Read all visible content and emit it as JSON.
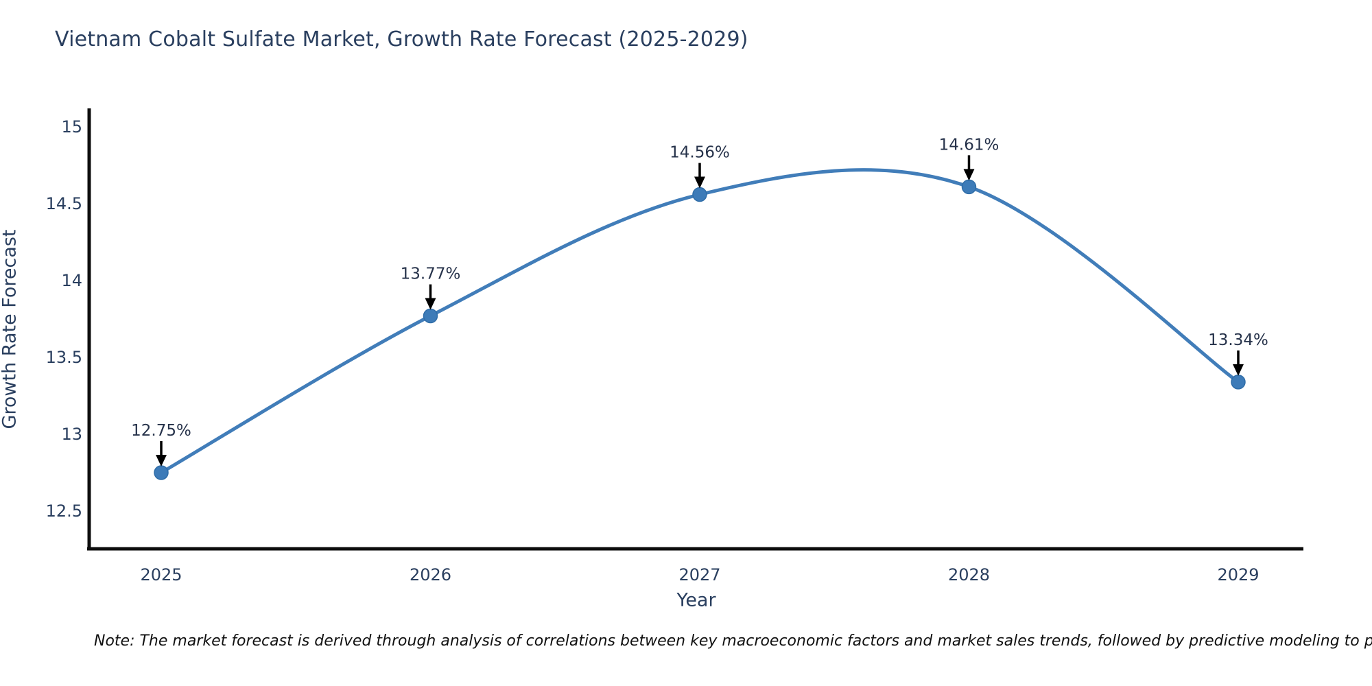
{
  "title": "Vietnam Cobalt Sulfate Market, Growth Rate Forecast (2025-2029)",
  "note": "Note: The market forecast is derived through analysis of correlations between key macroeconomic factors and market sales trends, followed by predictive modeling to project future sal",
  "chart_data": {
    "type": "line",
    "title": "Vietnam Cobalt Sulfate Market, Growth Rate Forecast (2025-2029)",
    "xlabel": "Year",
    "ylabel": "Growth Rate Forecast",
    "categories": [
      "2025",
      "2026",
      "2027",
      "2028",
      "2029"
    ],
    "series": [
      {
        "name": "Growth Rate Forecast",
        "values": [
          12.75,
          13.77,
          14.56,
          14.61,
          13.34
        ]
      }
    ],
    "point_labels": [
      "12.75%",
      "13.77%",
      "14.56%",
      "14.61%",
      "13.34%"
    ],
    "yticks": [
      "12.5",
      "13",
      "13.5",
      "14",
      "14.5",
      "15"
    ],
    "ytick_values": [
      12.5,
      13,
      13.5,
      14,
      14.5,
      15
    ],
    "ylim": [
      12.37,
      15.06
    ],
    "grid": false,
    "legend_position": "none",
    "curve": "spline",
    "colors": {
      "line": "#417db9",
      "marker": "#3d7bb8",
      "marker_edge": "#2f6da8",
      "axis": "#0d0d0d",
      "tick_text": "#2a3f5f",
      "annotation_text": "#26324a",
      "arrow": "#000000"
    }
  }
}
